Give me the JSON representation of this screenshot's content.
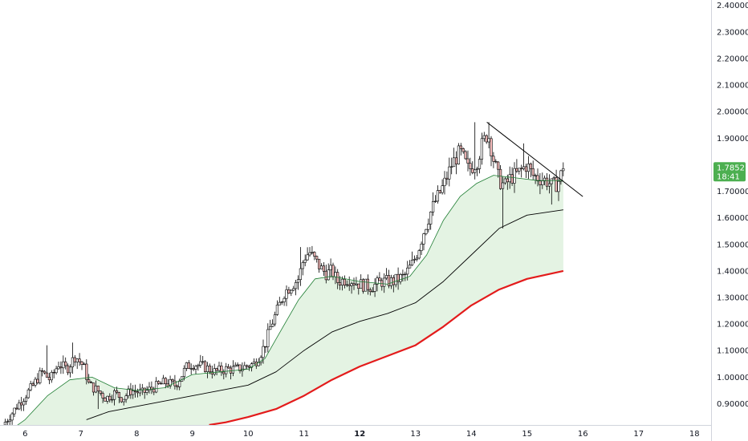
{
  "chart_data": {
    "type": "candlestick",
    "title": "",
    "xlabel": "",
    "ylabel": "",
    "ylim": [
      0.82,
      2.42
    ],
    "xlim": [
      5.55,
      18.3
    ],
    "x_ticks": [
      {
        "value": 6,
        "label": "6",
        "bold": false
      },
      {
        "value": 7,
        "label": "7",
        "bold": false
      },
      {
        "value": 8,
        "label": "8",
        "bold": false
      },
      {
        "value": 9,
        "label": "9",
        "bold": false
      },
      {
        "value": 10,
        "label": "10",
        "bold": false
      },
      {
        "value": 11,
        "label": "11",
        "bold": false
      },
      {
        "value": 12,
        "label": "12",
        "bold": true
      },
      {
        "value": 13,
        "label": "13",
        "bold": false
      },
      {
        "value": 14,
        "label": "14",
        "bold": false
      },
      {
        "value": 15,
        "label": "15",
        "bold": false
      },
      {
        "value": 16,
        "label": "16",
        "bold": false
      },
      {
        "value": 17,
        "label": "17",
        "bold": false
      },
      {
        "value": 18,
        "label": "18",
        "bold": false
      }
    ],
    "y_ticks": [
      {
        "value": 0.9,
        "label": "0.90000"
      },
      {
        "value": 1.0,
        "label": "1.00000"
      },
      {
        "value": 1.1,
        "label": "1.10000"
      },
      {
        "value": 1.2,
        "label": "1.20000"
      },
      {
        "value": 1.3,
        "label": "1.30000"
      },
      {
        "value": 1.4,
        "label": "1.40000"
      },
      {
        "value": 1.5,
        "label": "1.50000"
      },
      {
        "value": 1.6,
        "label": "1.60000"
      },
      {
        "value": 1.7,
        "label": "1.70000"
      },
      {
        "value": 1.9,
        "label": "1.90000"
      },
      {
        "value": 2.0,
        "label": "2.00000"
      },
      {
        "value": 2.1,
        "label": "2.10000"
      },
      {
        "value": 2.2,
        "label": "2.20000"
      },
      {
        "value": 2.3,
        "label": "2.30000"
      },
      {
        "value": 2.4,
        "label": "2.40000"
      }
    ],
    "price_tag": {
      "price": "1.78521",
      "countdown": "18:41",
      "value": 1.78521,
      "color": "#4caf50"
    },
    "trendline": {
      "from": [
        14.28,
        1.96
      ],
      "to": [
        16.0,
        1.68
      ],
      "color": "#000000"
    },
    "close_anchors": [
      [
        5.6,
        0.82
      ],
      [
        5.75,
        0.86
      ],
      [
        5.85,
        0.89
      ],
      [
        6.0,
        0.93
      ],
      [
        6.15,
        0.97
      ],
      [
        6.3,
        1.02
      ],
      [
        6.45,
        0.99
      ],
      [
        6.6,
        1.05
      ],
      [
        6.75,
        1.03
      ],
      [
        6.9,
        1.08
      ],
      [
        7.05,
        1.04
      ],
      [
        7.15,
        0.97
      ],
      [
        7.3,
        0.95
      ],
      [
        7.45,
        0.92
      ],
      [
        7.6,
        0.94
      ],
      [
        7.75,
        0.92
      ],
      [
        7.9,
        0.95
      ],
      [
        8.1,
        0.94
      ],
      [
        8.3,
        0.96
      ],
      [
        8.5,
        0.98
      ],
      [
        8.7,
        0.97
      ],
      [
        8.9,
        1.04
      ],
      [
        9.0,
        1.05
      ],
      [
        9.2,
        1.04
      ],
      [
        9.4,
        1.02
      ],
      [
        9.6,
        1.03
      ],
      [
        9.8,
        1.03
      ],
      [
        9.95,
        1.04
      ],
      [
        10.1,
        1.05
      ],
      [
        10.2,
        1.08
      ],
      [
        10.3,
        1.12
      ],
      [
        10.4,
        1.19
      ],
      [
        10.5,
        1.24
      ],
      [
        10.65,
        1.32
      ],
      [
        10.8,
        1.35
      ],
      [
        10.9,
        1.37
      ],
      [
        11.0,
        1.45
      ],
      [
        11.1,
        1.47
      ],
      [
        11.2,
        1.44
      ],
      [
        11.3,
        1.41
      ],
      [
        11.4,
        1.39
      ],
      [
        11.5,
        1.4
      ],
      [
        11.6,
        1.36
      ],
      [
        11.8,
        1.37
      ],
      [
        12.0,
        1.35
      ],
      [
        12.2,
        1.34
      ],
      [
        12.4,
        1.36
      ],
      [
        12.6,
        1.36
      ],
      [
        12.8,
        1.38
      ],
      [
        12.95,
        1.43
      ],
      [
        13.05,
        1.48
      ],
      [
        13.15,
        1.55
      ],
      [
        13.25,
        1.61
      ],
      [
        13.35,
        1.66
      ],
      [
        13.5,
        1.72
      ],
      [
        13.65,
        1.8
      ],
      [
        13.8,
        1.85
      ],
      [
        13.95,
        1.78
      ],
      [
        14.1,
        1.81
      ],
      [
        14.2,
        1.88
      ],
      [
        14.3,
        1.92
      ],
      [
        14.4,
        1.82
      ],
      [
        14.5,
        1.74
      ],
      [
        14.6,
        1.72
      ],
      [
        14.7,
        1.75
      ],
      [
        14.85,
        1.77
      ],
      [
        15.0,
        1.8
      ],
      [
        15.1,
        1.76
      ],
      [
        15.2,
        1.75
      ],
      [
        15.35,
        1.74
      ],
      [
        15.45,
        1.72
      ],
      [
        15.55,
        1.73
      ],
      [
        15.65,
        1.785
      ]
    ],
    "spikes": [
      {
        "x": 6.4,
        "high": 1.12
      },
      {
        "x": 6.85,
        "high": 1.13
      },
      {
        "x": 7.3,
        "low": 0.88
      },
      {
        "x": 10.95,
        "high": 1.49
      },
      {
        "x": 11.1,
        "high": 1.49
      },
      {
        "x": 14.05,
        "high": 1.96
      },
      {
        "x": 14.3,
        "high": 1.96
      },
      {
        "x": 14.55,
        "low": 1.56
      },
      {
        "x": 14.95,
        "high": 1.88
      },
      {
        "x": 15.45,
        "low": 1.65
      }
    ],
    "series": [
      {
        "color": "#1e7d32",
        "width": 0.8,
        "points": [
          [
            5.6,
            0.78
          ],
          [
            6.0,
            0.84
          ],
          [
            6.4,
            0.93
          ],
          [
            6.8,
            0.99
          ],
          [
            7.2,
            1.0
          ],
          [
            7.6,
            0.96
          ],
          [
            8.0,
            0.95
          ],
          [
            8.5,
            0.96
          ],
          [
            9.0,
            1.01
          ],
          [
            9.5,
            1.02
          ],
          [
            10.0,
            1.03
          ],
          [
            10.3,
            1.07
          ],
          [
            10.6,
            1.18
          ],
          [
            10.9,
            1.29
          ],
          [
            11.2,
            1.37
          ],
          [
            11.5,
            1.38
          ],
          [
            12.0,
            1.36
          ],
          [
            12.5,
            1.35
          ],
          [
            12.9,
            1.38
          ],
          [
            13.2,
            1.46
          ],
          [
            13.5,
            1.59
          ],
          [
            13.8,
            1.68
          ],
          [
            14.1,
            1.73
          ],
          [
            14.4,
            1.76
          ],
          [
            14.8,
            1.75
          ],
          [
            15.2,
            1.74
          ],
          [
            15.65,
            1.74
          ]
        ]
      },
      {
        "color": "#000000",
        "width": 0.9,
        "points": [
          [
            7.1,
            0.84
          ],
          [
            7.5,
            0.87
          ],
          [
            8.0,
            0.89
          ],
          [
            8.5,
            0.91
          ],
          [
            9.0,
            0.93
          ],
          [
            9.5,
            0.95
          ],
          [
            10.0,
            0.97
          ],
          [
            10.5,
            1.02
          ],
          [
            11.0,
            1.1
          ],
          [
            11.5,
            1.17
          ],
          [
            12.0,
            1.21
          ],
          [
            12.5,
            1.24
          ],
          [
            13.0,
            1.28
          ],
          [
            13.5,
            1.36
          ],
          [
            14.0,
            1.46
          ],
          [
            14.5,
            1.56
          ],
          [
            15.0,
            1.61
          ],
          [
            15.65,
            1.63
          ]
        ]
      },
      {
        "color": "#e31b1b",
        "width": 2.2,
        "points": [
          [
            9.3,
            0.82
          ],
          [
            9.6,
            0.83
          ],
          [
            10.0,
            0.85
          ],
          [
            10.5,
            0.88
          ],
          [
            11.0,
            0.93
          ],
          [
            11.5,
            0.99
          ],
          [
            12.0,
            1.04
          ],
          [
            12.5,
            1.08
          ],
          [
            13.0,
            1.12
          ],
          [
            13.5,
            1.19
          ],
          [
            14.0,
            1.27
          ],
          [
            14.5,
            1.33
          ],
          [
            15.0,
            1.37
          ],
          [
            15.65,
            1.4
          ]
        ]
      }
    ],
    "fill_color": "#e4f3e3"
  }
}
